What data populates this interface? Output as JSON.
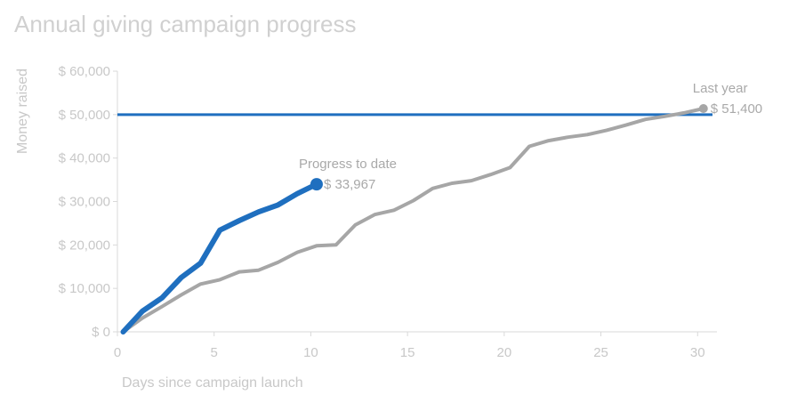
{
  "chart_data": {
    "type": "line",
    "title": "Annual giving campaign progress",
    "xlabel": "Days since campaign launch",
    "ylabel": "Money raised",
    "xlim": [
      0,
      31
    ],
    "ylim": [
      0,
      60000
    ],
    "x_ticks": [
      0,
      5,
      10,
      15,
      20,
      25,
      30
    ],
    "y_ticks": [
      0,
      10000,
      20000,
      30000,
      40000,
      50000,
      60000
    ],
    "y_tick_labels": [
      "$ 0",
      "$ 10,000",
      "$ 20,000",
      "$ 30,000",
      "$ 40,000",
      "$ 50,000",
      "$ 60,000"
    ],
    "grid": false,
    "goal": {
      "value": 50000,
      "color": "#1f6fbf"
    },
    "series": [
      {
        "color": "#a6a6a6",
        "x": [
          0.3,
          1.3,
          2.3,
          3.3,
          4.3,
          5.3,
          6.3,
          7.3,
          8.3,
          9.3,
          10.3,
          11.3,
          12.3,
          13.3,
          14.3,
          15.3,
          16.3,
          17.3,
          18.3,
          19.3,
          20.3,
          21.3,
          22.3,
          23.3,
          24.3,
          25.3,
          26.3,
          27.3,
          28.3,
          29.3,
          30.3
        ],
        "y": [
          0,
          3200,
          5800,
          8500,
          11000,
          12000,
          13800,
          14200,
          16000,
          18300,
          19800,
          20000,
          24600,
          27000,
          28000,
          30200,
          33000,
          34200,
          34800,
          36200,
          37800,
          42700,
          44000,
          44800,
          45400,
          46400,
          47600,
          48900,
          49600,
          50400,
          51400
        ],
        "end_label": [
          "Last year",
          "$ 51,400"
        ]
      },
      {
        "color": "#1f6fbf",
        "x": [
          0.3,
          1.3,
          2.3,
          3.3,
          4.3,
          5.3,
          6.3,
          7.3,
          8.3,
          9.3,
          10.3
        ],
        "y": [
          0,
          4800,
          7800,
          12500,
          15800,
          23400,
          25600,
          27600,
          29200,
          31800,
          33967
        ],
        "end_label": [
          "Progress to date",
          "$ 33,967"
        ]
      }
    ]
  }
}
